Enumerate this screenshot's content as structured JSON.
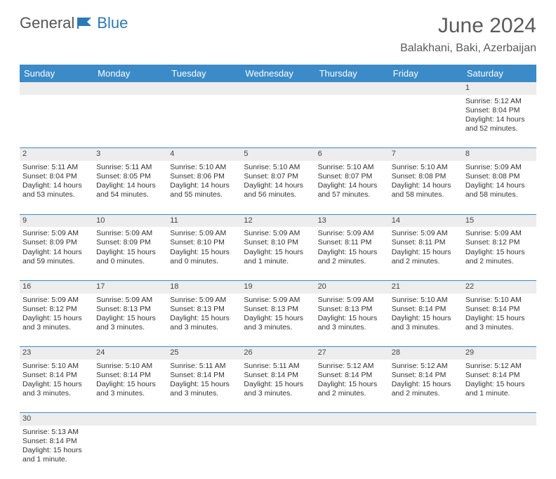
{
  "logo": {
    "part1": "General",
    "part2": "Blue"
  },
  "title": "June 2024",
  "location": "Balakhani, Baki, Azerbaijan",
  "colors": {
    "header_bg": "#3b8bc8",
    "header_text": "#ffffff",
    "grey_row": "#ededed",
    "border": "#3b8bc8",
    "text": "#333333",
    "title_text": "#5a5a5a"
  },
  "day_headers": [
    "Sunday",
    "Monday",
    "Tuesday",
    "Wednesday",
    "Thursday",
    "Friday",
    "Saturday"
  ],
  "weeks": [
    {
      "nums": [
        "",
        "",
        "",
        "",
        "",
        "",
        "1"
      ],
      "cells": [
        null,
        null,
        null,
        null,
        null,
        null,
        {
          "sunrise": "Sunrise: 5:12 AM",
          "sunset": "Sunset: 8:04 PM",
          "d1": "Daylight: 14 hours",
          "d2": "and 52 minutes."
        }
      ]
    },
    {
      "nums": [
        "2",
        "3",
        "4",
        "5",
        "6",
        "7",
        "8"
      ],
      "cells": [
        {
          "sunrise": "Sunrise: 5:11 AM",
          "sunset": "Sunset: 8:04 PM",
          "d1": "Daylight: 14 hours",
          "d2": "and 53 minutes."
        },
        {
          "sunrise": "Sunrise: 5:11 AM",
          "sunset": "Sunset: 8:05 PM",
          "d1": "Daylight: 14 hours",
          "d2": "and 54 minutes."
        },
        {
          "sunrise": "Sunrise: 5:10 AM",
          "sunset": "Sunset: 8:06 PM",
          "d1": "Daylight: 14 hours",
          "d2": "and 55 minutes."
        },
        {
          "sunrise": "Sunrise: 5:10 AM",
          "sunset": "Sunset: 8:07 PM",
          "d1": "Daylight: 14 hours",
          "d2": "and 56 minutes."
        },
        {
          "sunrise": "Sunrise: 5:10 AM",
          "sunset": "Sunset: 8:07 PM",
          "d1": "Daylight: 14 hours",
          "d2": "and 57 minutes."
        },
        {
          "sunrise": "Sunrise: 5:10 AM",
          "sunset": "Sunset: 8:08 PM",
          "d1": "Daylight: 14 hours",
          "d2": "and 58 minutes."
        },
        {
          "sunrise": "Sunrise: 5:09 AM",
          "sunset": "Sunset: 8:08 PM",
          "d1": "Daylight: 14 hours",
          "d2": "and 58 minutes."
        }
      ]
    },
    {
      "nums": [
        "9",
        "10",
        "11",
        "12",
        "13",
        "14",
        "15"
      ],
      "cells": [
        {
          "sunrise": "Sunrise: 5:09 AM",
          "sunset": "Sunset: 8:09 PM",
          "d1": "Daylight: 14 hours",
          "d2": "and 59 minutes."
        },
        {
          "sunrise": "Sunrise: 5:09 AM",
          "sunset": "Sunset: 8:09 PM",
          "d1": "Daylight: 15 hours",
          "d2": "and 0 minutes."
        },
        {
          "sunrise": "Sunrise: 5:09 AM",
          "sunset": "Sunset: 8:10 PM",
          "d1": "Daylight: 15 hours",
          "d2": "and 0 minutes."
        },
        {
          "sunrise": "Sunrise: 5:09 AM",
          "sunset": "Sunset: 8:10 PM",
          "d1": "Daylight: 15 hours",
          "d2": "and 1 minute."
        },
        {
          "sunrise": "Sunrise: 5:09 AM",
          "sunset": "Sunset: 8:11 PM",
          "d1": "Daylight: 15 hours",
          "d2": "and 2 minutes."
        },
        {
          "sunrise": "Sunrise: 5:09 AM",
          "sunset": "Sunset: 8:11 PM",
          "d1": "Daylight: 15 hours",
          "d2": "and 2 minutes."
        },
        {
          "sunrise": "Sunrise: 5:09 AM",
          "sunset": "Sunset: 8:12 PM",
          "d1": "Daylight: 15 hours",
          "d2": "and 2 minutes."
        }
      ]
    },
    {
      "nums": [
        "16",
        "17",
        "18",
        "19",
        "20",
        "21",
        "22"
      ],
      "cells": [
        {
          "sunrise": "Sunrise: 5:09 AM",
          "sunset": "Sunset: 8:12 PM",
          "d1": "Daylight: 15 hours",
          "d2": "and 3 minutes."
        },
        {
          "sunrise": "Sunrise: 5:09 AM",
          "sunset": "Sunset: 8:13 PM",
          "d1": "Daylight: 15 hours",
          "d2": "and 3 minutes."
        },
        {
          "sunrise": "Sunrise: 5:09 AM",
          "sunset": "Sunset: 8:13 PM",
          "d1": "Daylight: 15 hours",
          "d2": "and 3 minutes."
        },
        {
          "sunrise": "Sunrise: 5:09 AM",
          "sunset": "Sunset: 8:13 PM",
          "d1": "Daylight: 15 hours",
          "d2": "and 3 minutes."
        },
        {
          "sunrise": "Sunrise: 5:09 AM",
          "sunset": "Sunset: 8:13 PM",
          "d1": "Daylight: 15 hours",
          "d2": "and 3 minutes."
        },
        {
          "sunrise": "Sunrise: 5:10 AM",
          "sunset": "Sunset: 8:14 PM",
          "d1": "Daylight: 15 hours",
          "d2": "and 3 minutes."
        },
        {
          "sunrise": "Sunrise: 5:10 AM",
          "sunset": "Sunset: 8:14 PM",
          "d1": "Daylight: 15 hours",
          "d2": "and 3 minutes."
        }
      ]
    },
    {
      "nums": [
        "23",
        "24",
        "25",
        "26",
        "27",
        "28",
        "29"
      ],
      "cells": [
        {
          "sunrise": "Sunrise: 5:10 AM",
          "sunset": "Sunset: 8:14 PM",
          "d1": "Daylight: 15 hours",
          "d2": "and 3 minutes."
        },
        {
          "sunrise": "Sunrise: 5:10 AM",
          "sunset": "Sunset: 8:14 PM",
          "d1": "Daylight: 15 hours",
          "d2": "and 3 minutes."
        },
        {
          "sunrise": "Sunrise: 5:11 AM",
          "sunset": "Sunset: 8:14 PM",
          "d1": "Daylight: 15 hours",
          "d2": "and 3 minutes."
        },
        {
          "sunrise": "Sunrise: 5:11 AM",
          "sunset": "Sunset: 8:14 PM",
          "d1": "Daylight: 15 hours",
          "d2": "and 3 minutes."
        },
        {
          "sunrise": "Sunrise: 5:12 AM",
          "sunset": "Sunset: 8:14 PM",
          "d1": "Daylight: 15 hours",
          "d2": "and 2 minutes."
        },
        {
          "sunrise": "Sunrise: 5:12 AM",
          "sunset": "Sunset: 8:14 PM",
          "d1": "Daylight: 15 hours",
          "d2": "and 2 minutes."
        },
        {
          "sunrise": "Sunrise: 5:12 AM",
          "sunset": "Sunset: 8:14 PM",
          "d1": "Daylight: 15 hours",
          "d2": "and 1 minute."
        }
      ]
    },
    {
      "nums": [
        "30",
        "",
        "",
        "",
        "",
        "",
        ""
      ],
      "cells": [
        {
          "sunrise": "Sunrise: 5:13 AM",
          "sunset": "Sunset: 8:14 PM",
          "d1": "Daylight: 15 hours",
          "d2": "and 1 minute."
        },
        null,
        null,
        null,
        null,
        null,
        null
      ]
    }
  ]
}
